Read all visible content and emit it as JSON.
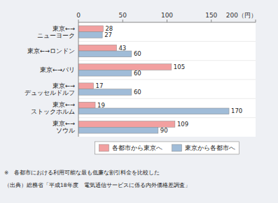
{
  "chart_data": {
    "type": "bar",
    "orientation": "horizontal",
    "categories": [
      "東京←→\n　ニューヨーク",
      "東京←→ロンドン",
      "東京←→パリ",
      "東京←→\n　デュッセルドルフ",
      "東京←→\n　ストックホルム",
      "東京←→\n　ソウル"
    ],
    "series": [
      {
        "name": "各都市から東京へ",
        "color": "#f2a0a0",
        "values": [
          28,
          43,
          105,
          17,
          19,
          109
        ]
      },
      {
        "name": "東京から各都市へ",
        "color": "#a0bcd8",
        "values": [
          27,
          60,
          60,
          60,
          170,
          90
        ]
      }
    ],
    "xlim": [
      0,
      200
    ],
    "xticks": [
      0,
      50,
      100,
      150,
      {
        "value": 200,
        "label": "200（円）"
      }
    ],
    "data_labels": true,
    "legend": "bottom",
    "grid": false,
    "annotations": [
      "※　各都市における利用可能な最も低廉な割引料金を比較した",
      "（出典）総務省「平成18年度　電気通信サービスに係る内外価格差調査」"
    ]
  }
}
